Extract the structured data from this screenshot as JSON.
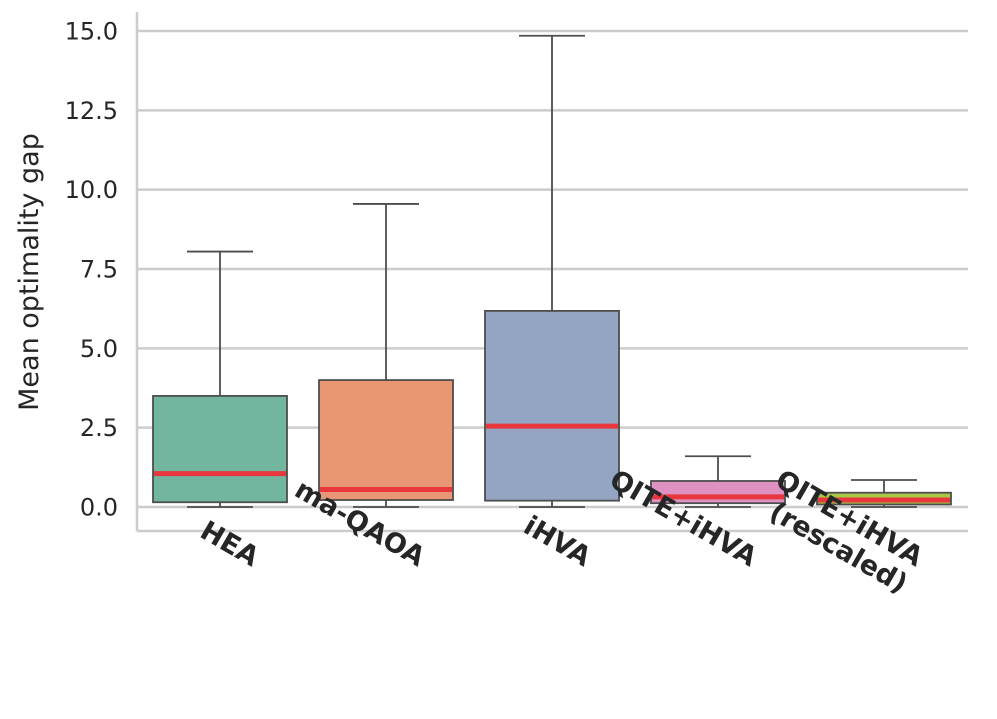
{
  "chart_data": {
    "type": "box",
    "title": "",
    "xlabel": "",
    "ylabel": "Mean optimality gap",
    "ylim": [
      -0.75,
      15.6
    ],
    "yticks": [
      0.0,
      2.5,
      5.0,
      7.5,
      10.0,
      12.5,
      15.0
    ],
    "ytick_labels": [
      "0.0",
      "2.5",
      "5.0",
      "7.5",
      "10.0",
      "12.5",
      "15.0"
    ],
    "grid": "horizontal",
    "median_color": "#e8383d",
    "categories": [
      {
        "label_lines": [
          "HEA"
        ],
        "color": "#72b6a0",
        "whisker_low": 0.0,
        "q1": 0.15,
        "median": 1.05,
        "q3": 3.5,
        "whisker_high": 8.05
      },
      {
        "label_lines": [
          "ma-QAOA"
        ],
        "color": "#e99675",
        "whisker_low": 0.0,
        "q1": 0.22,
        "median": 0.55,
        "q3": 4.0,
        "whisker_high": 9.55
      },
      {
        "label_lines": [
          "iHVA"
        ],
        "color": "#94a5c4",
        "whisker_low": 0.0,
        "q1": 0.2,
        "median": 2.55,
        "q3": 6.18,
        "whisker_high": 14.85
      },
      {
        "label_lines": [
          "QITE+iHVA"
        ],
        "color": "#df91c2",
        "whisker_low": 0.0,
        "q1": 0.12,
        "median": 0.32,
        "q3": 0.82,
        "whisker_high": 1.6
      },
      {
        "label_lines": [
          "QITE+iHVA",
          "(rescaled)"
        ],
        "color": "#a8c946",
        "whisker_low": 0.0,
        "q1": 0.08,
        "median": 0.22,
        "q3": 0.45,
        "whisker_high": 0.85
      }
    ]
  }
}
